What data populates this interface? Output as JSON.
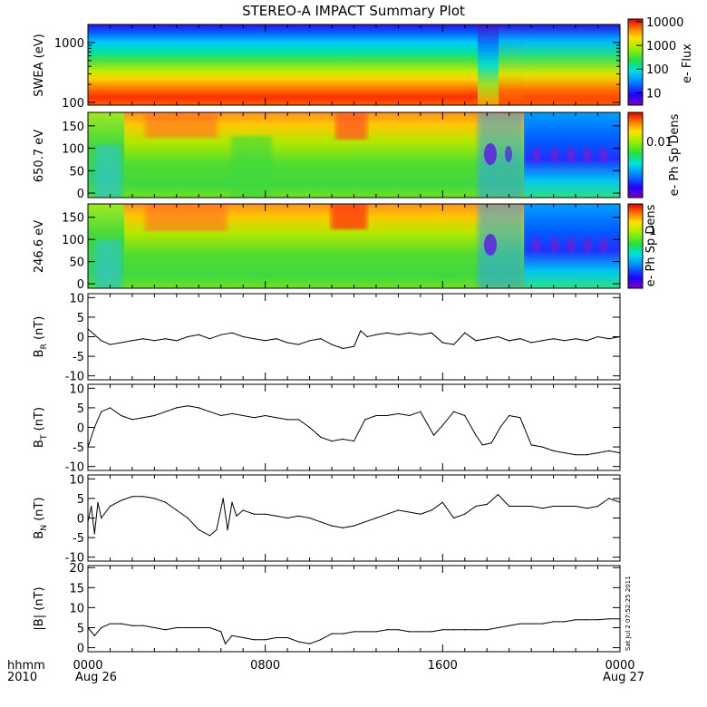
{
  "title": "STEREO-A IMPACT Summary Plot",
  "timestamp": "Sat Jul  2 07:52:25 2011",
  "x_axis": {
    "row1_label": "hhmm",
    "row2_label": "2010",
    "ticks": [
      "0000",
      "0800",
      "1600",
      "0000"
    ],
    "tick_hours": [
      0,
      8,
      16,
      24
    ],
    "date_left": "Aug 26",
    "date_right": "Aug 27"
  },
  "colors": {
    "spectrogram_scale": [
      "#7a00cc",
      "#0033ff",
      "#00aaff",
      "#00e0c0",
      "#33dd33",
      "#aaee00",
      "#ffee00",
      "#ff9900",
      "#ff3300",
      "#dd0000"
    ],
    "trace": "#000000"
  },
  "chart_data": [
    {
      "type": "heatmap",
      "id": "swea",
      "ylabel": "SWEA (eV)",
      "yscale": "log",
      "ylim": [
        90,
        2000
      ],
      "yticks": [
        100,
        1000
      ],
      "ytick_labels": [
        "100",
        "1000"
      ],
      "colorbar_label": "e- Flux",
      "colorbar_scale": "log",
      "colorbar_range": [
        3,
        13000
      ],
      "colorbar_ticks": [
        "10000",
        "1000",
        "100",
        "10"
      ]
    },
    {
      "type": "heatmap",
      "id": "pad650",
      "ylabel": "650.7 eV",
      "ylim": [
        -10,
        180
      ],
      "yticks": [
        0,
        50,
        100,
        150
      ],
      "colorbar_label": "e- Ph Sp Dens",
      "colorbar_ticks": [
        "0.01"
      ]
    },
    {
      "type": "heatmap",
      "id": "pad246",
      "ylabel": "246.6 eV",
      "ylim": [
        -10,
        180
      ],
      "yticks": [
        0,
        50,
        100,
        150
      ],
      "colorbar_label": "e- Ph Sp Dens",
      "colorbar_ticks": [
        "1"
      ]
    },
    {
      "type": "line",
      "id": "br",
      "ylabel": "B_R (nT)",
      "ylabel_main": "B",
      "ylabel_sub": "R",
      "ylabel_unit": "(nT)",
      "ylim": [
        -11,
        11
      ],
      "yticks": [
        -10,
        -5,
        0,
        5,
        10
      ],
      "x_hours": [
        0,
        0.3,
        0.6,
        1,
        1.5,
        2,
        2.5,
        3,
        3.5,
        4,
        4.5,
        5,
        5.5,
        6,
        6.5,
        7,
        7.5,
        8,
        8.5,
        9,
        9.5,
        10,
        10.5,
        11,
        11.5,
        12,
        12.3,
        12.6,
        13,
        13.5,
        14,
        14.5,
        15,
        15.5,
        16,
        16.5,
        17,
        17.5,
        18,
        18.5,
        19,
        19.5,
        20,
        20.5,
        21,
        21.5,
        22,
        22.5,
        23,
        23.5,
        24
      ],
      "values": [
        2,
        0.5,
        -1,
        -2,
        -1.5,
        -1,
        -0.5,
        -1,
        -0.5,
        -1,
        0,
        0.5,
        -0.5,
        0.5,
        1,
        0,
        -0.5,
        -1,
        -0.5,
        -1.5,
        -2,
        -1,
        -0.5,
        -2,
        -3,
        -2.5,
        1.5,
        0,
        0.5,
        1,
        0.5,
        1,
        0.5,
        1,
        -1.5,
        -2,
        1,
        -1,
        -0.5,
        0,
        -1,
        -0.5,
        -1.5,
        -1,
        -0.5,
        -1,
        -0.5,
        -1,
        0,
        -0.5,
        0
      ]
    },
    {
      "type": "line",
      "id": "bt",
      "ylabel": "B_T (nT)",
      "ylabel_main": "B",
      "ylabel_sub": "T",
      "ylabel_unit": "(nT)",
      "ylim": [
        -11,
        11
      ],
      "yticks": [
        -10,
        -5,
        0,
        5,
        10
      ],
      "x_hours": [
        0,
        0.3,
        0.6,
        1,
        1.5,
        2,
        2.5,
        3,
        3.5,
        4,
        4.5,
        5,
        5.5,
        6,
        6.5,
        7,
        7.5,
        8,
        8.5,
        9,
        9.5,
        10,
        10.5,
        11,
        11.5,
        12,
        12.5,
        13,
        13.5,
        14,
        14.5,
        15,
        15.3,
        15.6,
        16,
        16.5,
        17,
        17.5,
        17.8,
        18.2,
        18.6,
        19,
        19.5,
        20,
        20.5,
        21,
        21.5,
        22,
        22.5,
        23,
        23.5,
        24
      ],
      "values": [
        -5,
        0,
        4,
        5,
        3,
        2,
        2.5,
        3,
        4,
        5,
        5.5,
        5,
        4,
        3,
        3.5,
        3,
        2.5,
        3,
        2.5,
        2,
        2,
        0,
        -2.5,
        -3.5,
        -3,
        -3.5,
        2,
        3,
        3,
        3.5,
        3,
        4,
        1,
        -2,
        0.5,
        4,
        3,
        -2,
        -4.5,
        -4,
        0,
        3,
        2.5,
        -4.5,
        -5,
        -6,
        -6.5,
        -7,
        -7,
        -6.5,
        -6,
        -6.5
      ]
    },
    {
      "type": "line",
      "id": "bn",
      "ylabel": "B_N (nT)",
      "ylabel_main": "B",
      "ylabel_sub": "N",
      "ylabel_unit": "(nT)",
      "ylim": [
        -11,
        11
      ],
      "yticks": [
        -10,
        -5,
        0,
        5,
        10
      ],
      "x_hours": [
        0,
        0.15,
        0.3,
        0.45,
        0.6,
        1,
        1.5,
        2,
        2.5,
        3,
        3.5,
        4,
        4.5,
        5,
        5.5,
        5.8,
        6.1,
        6.3,
        6.5,
        6.7,
        7,
        7.5,
        8,
        8.5,
        9,
        9.5,
        10,
        10.5,
        11,
        11.5,
        12,
        12.5,
        13,
        13.5,
        14,
        14.5,
        15,
        15.5,
        16,
        16.5,
        17,
        17.5,
        18,
        18.5,
        19,
        19.5,
        20,
        20.5,
        21,
        21.5,
        22,
        22.5,
        23,
        23.5,
        24
      ],
      "values": [
        -1,
        3,
        -4,
        4,
        0,
        3,
        4.5,
        5.5,
        5.5,
        5,
        4,
        2,
        0,
        -3,
        -4.5,
        -3,
        5,
        -3,
        4,
        0.5,
        2,
        1,
        1,
        0.5,
        0,
        0.5,
        0,
        -1,
        -2,
        -2.5,
        -2,
        -1,
        0,
        1,
        2,
        1.5,
        1,
        2,
        4,
        0,
        1,
        3,
        3.5,
        6,
        3,
        3,
        3,
        2.5,
        3,
        3,
        3,
        2.5,
        3,
        5,
        4
      ]
    },
    {
      "type": "line",
      "id": "bmag",
      "ylabel": "|B| (nT)",
      "ylabel_main": "|B|",
      "ylabel_sub": "",
      "ylabel_unit": "(nT)",
      "ylim": [
        -1,
        20.5
      ],
      "yticks": [
        0,
        5,
        10,
        15,
        20
      ],
      "x_hours": [
        0,
        0.3,
        0.6,
        1,
        1.5,
        2,
        2.5,
        3,
        3.5,
        4,
        4.5,
        5,
        5.5,
        6,
        6.2,
        6.5,
        7,
        7.5,
        8,
        8.5,
        9,
        9.5,
        10,
        10.5,
        11,
        11.5,
        12,
        12.5,
        13,
        13.5,
        14,
        14.5,
        15,
        15.5,
        16,
        16.5,
        17,
        17.5,
        18,
        18.5,
        19,
        19.5,
        20,
        20.5,
        21,
        21.5,
        22,
        22.5,
        23,
        23.5,
        24
      ],
      "values": [
        5,
        3,
        5,
        6,
        6,
        5.5,
        5.5,
        5,
        4.5,
        5,
        5,
        5,
        5,
        4,
        1,
        3,
        2.5,
        2,
        2,
        2.5,
        2.5,
        1.5,
        1,
        2,
        3.5,
        3.5,
        4,
        4,
        4,
        4.5,
        4.5,
        4,
        4,
        4,
        4.5,
        4.5,
        4.5,
        4.5,
        4.5,
        5,
        5.5,
        6,
        6,
        6,
        6.5,
        6.5,
        7,
        7,
        7,
        7.2,
        7.2
      ]
    }
  ]
}
